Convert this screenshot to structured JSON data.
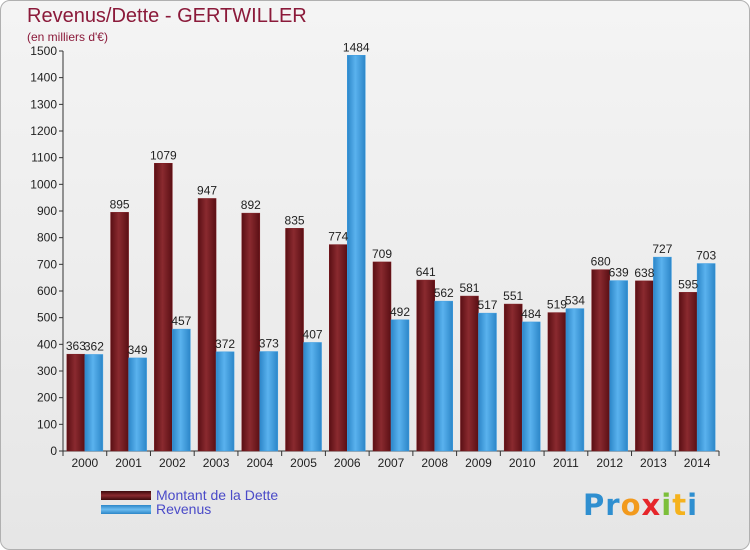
{
  "title": "Revenus/Dette - GERTWILLER",
  "subtitle": "(en milliers d'€)",
  "colors": {
    "dette": "#7b1a1f",
    "revenus": "#3c9ce0",
    "title": "#8b1a3a",
    "legend_text": "#4a4ac8"
  },
  "legend": {
    "dette_label": "Montant de la Dette",
    "revenus_label": "Revenus"
  },
  "logo": {
    "letters": [
      "P",
      "r",
      "o",
      "x",
      "i",
      "t",
      "i"
    ],
    "colors": [
      "#2f8fd0",
      "#2f8fd0",
      "#f29a1d",
      "#e6262b",
      "#7cbf3a",
      "#f5b21d",
      "#2f8fd0"
    ]
  },
  "chart_data": {
    "type": "bar",
    "title": "Revenus/Dette - GERTWILLER",
    "ylabel": "(en milliers d'€)",
    "xlabel": "",
    "categories": [
      "2000",
      "2001",
      "2002",
      "2003",
      "2004",
      "2005",
      "2006",
      "2007",
      "2008",
      "2009",
      "2010",
      "2011",
      "2012",
      "2013",
      "2014"
    ],
    "series": [
      {
        "name": "Montant de la Dette",
        "values": [
          363,
          895,
          1079,
          947,
          892,
          835,
          774,
          709,
          641,
          581,
          551,
          519,
          680,
          638,
          595
        ]
      },
      {
        "name": "Revenus",
        "values": [
          362,
          349,
          457,
          372,
          373,
          407,
          1484,
          492,
          562,
          517,
          484,
          534,
          639,
          727,
          703
        ]
      }
    ],
    "ylim": [
      0,
      1500
    ],
    "yticks": [
      0,
      100,
      200,
      300,
      400,
      500,
      600,
      700,
      800,
      900,
      1000,
      1100,
      1200,
      1300,
      1400,
      1500
    ],
    "grid": false,
    "legend_position": "bottom-left"
  }
}
